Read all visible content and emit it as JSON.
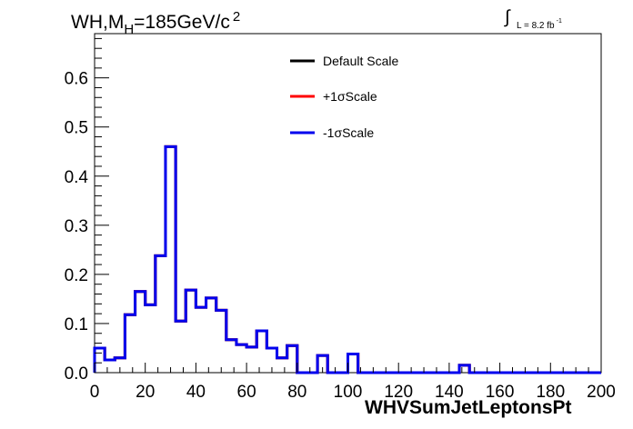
{
  "title": {
    "prefix": "WH,M",
    "subscript": "H",
    "suffix": "=185GeV/c",
    "superscript": "2"
  },
  "lumi": {
    "symbol": "∫",
    "text": "L = 8.2 fb",
    "exponent": "-1"
  },
  "chart_data": {
    "type": "line",
    "xlabel": "WHVSumJetLeptonsPt",
    "ylabel": "",
    "xlim": [
      0,
      200
    ],
    "ylim": [
      0,
      0.69
    ],
    "xticks": [
      0,
      20,
      40,
      60,
      80,
      100,
      120,
      140,
      160,
      180,
      200
    ],
    "yticks": [
      0.0,
      0.1,
      0.2,
      0.3,
      0.4,
      0.5,
      0.6
    ],
    "ytick_labels": [
      "0.0",
      "0.1",
      "0.2",
      "0.3",
      "0.4",
      "0.5",
      "0.6"
    ],
    "bin_width": 4,
    "bin_edges_start": 0,
    "legend_position": "top-center",
    "grid": false,
    "series": [
      {
        "name": "Default Scale",
        "color": "#000000",
        "values": [
          0.05,
          0.026,
          0.03,
          0.118,
          0.165,
          0.138,
          0.238,
          0.46,
          0.105,
          0.168,
          0.133,
          0.152,
          0.127,
          0.067,
          0.057,
          0.052,
          0.085,
          0.05,
          0.03,
          0.055,
          0.0,
          0.0,
          0.035,
          0.0,
          0.0,
          0.038,
          0.0,
          0.0,
          0.0,
          0.0,
          0.0,
          0.0,
          0.0,
          0.0,
          0.0,
          0.0,
          0.015,
          0.0,
          0.0,
          0.0,
          0.0,
          0.0,
          0.0,
          0.0,
          0.0,
          0.0,
          0.0,
          0.0,
          0.0,
          0.0
        ]
      },
      {
        "name": "+1σScale",
        "label_prefix": "+1",
        "label_symbol": "σ",
        "label_suffix": "Scale",
        "color": "#ff0000",
        "values": [
          0.05,
          0.026,
          0.03,
          0.118,
          0.165,
          0.138,
          0.238,
          0.46,
          0.105,
          0.168,
          0.133,
          0.152,
          0.127,
          0.067,
          0.057,
          0.052,
          0.085,
          0.05,
          0.03,
          0.055,
          0.0,
          0.0,
          0.035,
          0.0,
          0.0,
          0.038,
          0.0,
          0.0,
          0.0,
          0.0,
          0.0,
          0.0,
          0.0,
          0.0,
          0.0,
          0.0,
          0.015,
          0.0,
          0.0,
          0.0,
          0.0,
          0.0,
          0.0,
          0.0,
          0.0,
          0.0,
          0.0,
          0.0,
          0.0,
          0.0
        ]
      },
      {
        "name": "-1σScale",
        "label_prefix": "-1",
        "label_symbol": "σ",
        "label_suffix": "Scale",
        "color": "#0000ee",
        "values": [
          0.05,
          0.026,
          0.03,
          0.118,
          0.165,
          0.138,
          0.238,
          0.46,
          0.105,
          0.168,
          0.133,
          0.152,
          0.127,
          0.067,
          0.057,
          0.052,
          0.085,
          0.05,
          0.03,
          0.055,
          0.0,
          0.0,
          0.035,
          0.0,
          0.0,
          0.038,
          0.0,
          0.0,
          0.0,
          0.0,
          0.0,
          0.0,
          0.0,
          0.0,
          0.0,
          0.0,
          0.015,
          0.0,
          0.0,
          0.0,
          0.0,
          0.0,
          0.0,
          0.0,
          0.0,
          0.0,
          0.0,
          0.0,
          0.0,
          0.0
        ]
      }
    ]
  }
}
